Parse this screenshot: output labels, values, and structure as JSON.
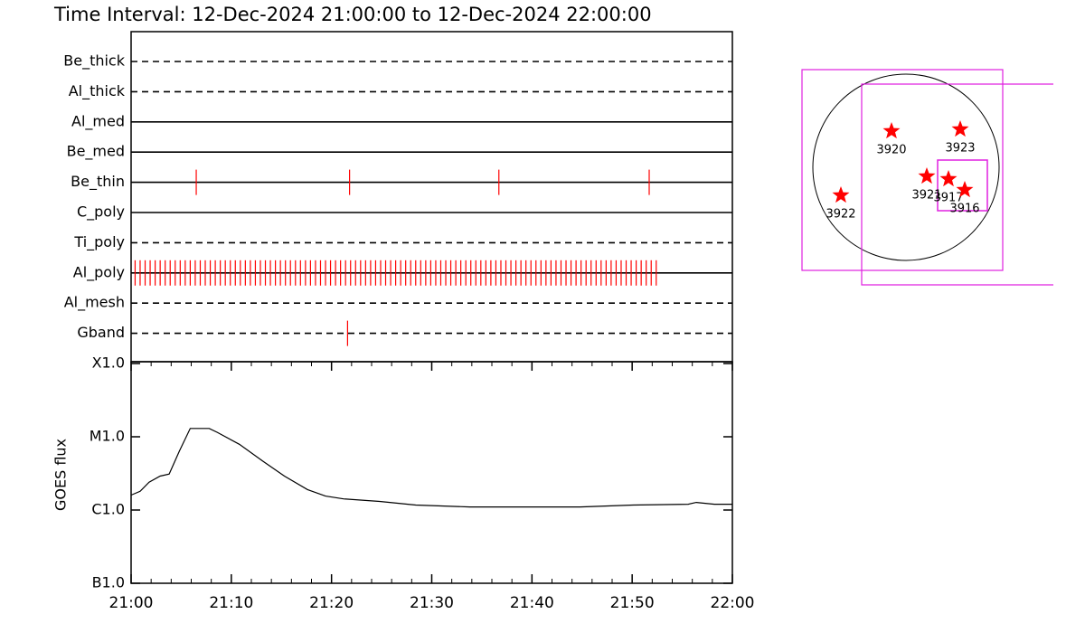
{
  "chart_data": [
    {
      "type": "event-timeline",
      "title": "Time Interval: 12-Dec-2024 21:00:00 to 12-Dec-2024 22:00:00",
      "categories": [
        "Be_thick",
        "Al_thick",
        "Al_med",
        "Be_med",
        "Be_thin",
        "C_poly",
        "Ti_poly",
        "Al_poly",
        "Al_mesh",
        "Gband"
      ],
      "line_styles": [
        "dashed",
        "dashed",
        "solid",
        "solid",
        "solid",
        "solid",
        "dashed",
        "solid",
        "dashed",
        "dashed"
      ],
      "events": [
        [],
        [],
        [],
        [],
        [
          6.5,
          21.8,
          36.7,
          51.7
        ],
        [],
        [],
        [
          0.4,
          0.9,
          1.4,
          1.9,
          2.4,
          2.9,
          3.4,
          3.9,
          4.4,
          4.9,
          5.4,
          5.9,
          6.4,
          6.9,
          7.4,
          7.9,
          8.4,
          8.9,
          9.4,
          9.9,
          10.4,
          10.9,
          11.4,
          11.9,
          12.4,
          12.9,
          13.4,
          13.9,
          14.4,
          14.9,
          15.4,
          15.9,
          16.4,
          16.9,
          17.4,
          17.9,
          18.4,
          18.9,
          19.4,
          19.9,
          20.4,
          20.9,
          21.4,
          21.9,
          22.4,
          22.9,
          23.4,
          23.9,
          24.4,
          24.9,
          25.4,
          25.9,
          26.4,
          26.9,
          27.4,
          27.9,
          28.4,
          28.9,
          29.4,
          29.9,
          30.4,
          30.9,
          31.4,
          31.9,
          32.4,
          32.9,
          33.4,
          33.9,
          34.4,
          34.9,
          35.4,
          35.9,
          36.4,
          36.9,
          37.4,
          37.9,
          38.4,
          38.9,
          39.4,
          39.9,
          40.4,
          40.9,
          41.4,
          41.9,
          42.4,
          42.9,
          43.4,
          43.9,
          44.4,
          44.9,
          45.4,
          45.9,
          46.4,
          46.9,
          47.4,
          47.9,
          48.4,
          48.9,
          49.4,
          49.9,
          50.4,
          50.9,
          51.4,
          51.9,
          52.4
        ],
        [],
        [
          21.6
        ]
      ],
      "color": "#ff0000",
      "xlim": [
        0,
        60
      ]
    },
    {
      "type": "line",
      "ylabel": "GOES flux",
      "x": [
        0,
        0.9,
        1.8,
        2.9,
        3.8,
        4.8,
        5.9,
        7.8,
        8.6,
        10.8,
        13.1,
        15.3,
        17.6,
        19.4,
        21.2,
        24.8,
        28.4,
        33.8,
        37.5,
        44.8,
        50.1,
        55.6,
        56.4,
        58.2,
        60
      ],
      "values": [
        1.6e-06,
        1.8e-06,
        2.4e-06,
        2.9e-06,
        3.1e-06,
        6.3e-06,
        1.3e-05,
        1.3e-05,
        1.15e-05,
        7.9e-06,
        4.7e-06,
        2.9e-06,
        1.9e-06,
        1.55e-06,
        1.42e-06,
        1.31e-06,
        1.17e-06,
        1.1e-06,
        1.1e-06,
        1.1e-06,
        1.17e-06,
        1.2e-06,
        1.27e-06,
        1.2e-06,
        1.2e-06
      ],
      "color": "#000000",
      "xlim": [
        0,
        60
      ],
      "xticks": [
        {
          "value": 0,
          "label": "21:00"
        },
        {
          "value": 10,
          "label": "21:10"
        },
        {
          "value": 20,
          "label": "21:20"
        },
        {
          "value": 30,
          "label": "21:30"
        },
        {
          "value": 40,
          "label": "21:40"
        },
        {
          "value": 50,
          "label": "21:50"
        },
        {
          "value": 60,
          "label": "22:00"
        }
      ],
      "x_minor_ticks": [
        2,
        4,
        6,
        8,
        12,
        14,
        16,
        18,
        22,
        24,
        26,
        28,
        32,
        34,
        36,
        38,
        42,
        44,
        46,
        48,
        52,
        54,
        56,
        58
      ],
      "ylim": [
        1e-07,
        0.0001
      ],
      "yticks": [
        {
          "value": 0.0001,
          "label": "X1.0"
        },
        {
          "value": 1e-05,
          "label": "M1.0"
        },
        {
          "value": 1e-06,
          "label": "C1.0"
        },
        {
          "value": 1e-07,
          "label": "B1.0"
        }
      ],
      "log_scale": true
    },
    {
      "type": "map",
      "regions": [
        "3920",
        "3923",
        "3922",
        "3921",
        "3917",
        "3916"
      ],
      "color": "#ff0000"
    }
  ]
}
